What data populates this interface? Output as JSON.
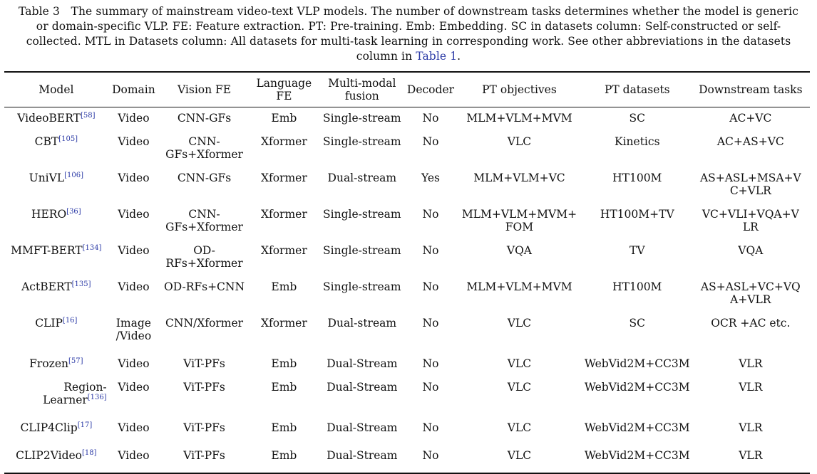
{
  "caption": {
    "text": "Table 3 The summary of mainstream video-text VLP models. The number of downstream tasks determines whether the model is generic or domain-specific VLP. FE: Feature extraction. PT: Pre-training. Emb: Embedding. SC in datasets column: Self-constructed or self-collected. MTL in Datasets column: All datasets for multi-task learning in corresponding work. See other abbreviations in the datasets column in ",
    "link": "Table 1",
    "end": "."
  },
  "headers": {
    "model": "Model",
    "domain": "Domain",
    "vision_fe": "Vision FE",
    "language_fe": "Language FE",
    "fusion": "Multi-modal fusion",
    "decoder": "Decoder",
    "pt_objectives": "PT objectives",
    "pt_datasets": "PT datasets",
    "downstream": "Downstream tasks"
  },
  "rows": [
    {
      "model": "VideoBERT",
      "ref": "[58]",
      "domain": "Video",
      "vision_fe": "CNN-GFs",
      "language_fe": "Emb",
      "fusion": "Single-stream",
      "decoder": "No",
      "pt_objectives": "MLM+VLM+MVM",
      "pt_datasets": "SC",
      "downstream": "AC+VC"
    },
    {
      "model": "CBT",
      "ref": "[105]",
      "domain": "Video",
      "vision_fe": "CNN-\nGFs+Xformer",
      "language_fe": "Xformer",
      "fusion": "Single-stream",
      "decoder": "No",
      "pt_objectives": "VLC",
      "pt_datasets": "Kinetics",
      "downstream": "AC+AS+VC"
    },
    {
      "model": "UniVL",
      "ref": "[106]",
      "domain": "Video",
      "vision_fe": "CNN-GFs",
      "language_fe": "Xformer",
      "fusion": "Dual-stream",
      "decoder": "Yes",
      "pt_objectives": "MLM+VLM+VC",
      "pt_datasets": "HT100M",
      "downstream": "AS+ASL+MSA+V\nC+VLR"
    },
    {
      "model": "HERO",
      "ref": "[36]",
      "domain": "Video",
      "vision_fe": "CNN-\nGFs+Xformer",
      "language_fe": "Xformer",
      "fusion": "Single-stream",
      "decoder": "No",
      "pt_objectives": "MLM+VLM+MVM+\nFOM",
      "pt_datasets": "HT100M+TV",
      "downstream": "VC+VLI+VQA+V\nLR"
    },
    {
      "model": "MMFT-BERT",
      "ref": "[134]",
      "domain": "Video",
      "vision_fe": "OD-\nRFs+Xformer",
      "language_fe": "Xformer",
      "fusion": "Single-stream",
      "decoder": "No",
      "pt_objectives": "VQA",
      "pt_datasets": "TV",
      "downstream": "VQA"
    },
    {
      "model": "ActBERT",
      "ref": "[135]",
      "domain": "Video",
      "vision_fe": "OD-RFs+CNN",
      "language_fe": "Emb",
      "fusion": "Single-stream",
      "decoder": "No",
      "pt_objectives": "MLM+VLM+MVM",
      "pt_datasets": "HT100M",
      "downstream": "AS+ASL+VC+VQ\nA+VLR"
    },
    {
      "model": "CLIP",
      "ref": "[16]",
      "domain": "Image\n/Video",
      "vision_fe": "CNN/Xformer",
      "language_fe": "Xformer",
      "fusion": "Dual-stream",
      "decoder": "No",
      "pt_objectives": "VLC",
      "pt_datasets": "SC",
      "downstream": "OCR +AC etc."
    },
    {
      "model": "Frozen",
      "ref": "[57]",
      "domain": "Video",
      "vision_fe": "ViT-PFs",
      "language_fe": "Emb",
      "fusion": "Dual-Stream",
      "decoder": "No",
      "pt_objectives": "VLC",
      "pt_datasets": "WebVid2M+CC3M",
      "downstream": "VLR"
    },
    {
      "model": "Region-\nLearner",
      "ref": "[136]",
      "domain": "Video",
      "vision_fe": "ViT-PFs",
      "language_fe": "Emb",
      "fusion": "Dual-Stream",
      "decoder": "No",
      "pt_objectives": "VLC",
      "pt_datasets": "WebVid2M+CC3M",
      "downstream": "VLR"
    },
    {
      "model": "CLIP4Clip",
      "ref": "[17]",
      "domain": "Video",
      "vision_fe": "ViT-PFs",
      "language_fe": "Emb",
      "fusion": "Dual-Stream",
      "decoder": "No",
      "pt_objectives": "VLC",
      "pt_datasets": "WebVid2M+CC3M",
      "downstream": "VLR"
    },
    {
      "model": "CLIP2Video",
      "ref": "[18]",
      "domain": "Video",
      "vision_fe": "ViT-PFs",
      "language_fe": "Emb",
      "fusion": "Dual-Stream",
      "decoder": "No",
      "pt_objectives": "VLC",
      "pt_datasets": "WebVid2M+CC3M",
      "downstream": "VLR"
    }
  ]
}
